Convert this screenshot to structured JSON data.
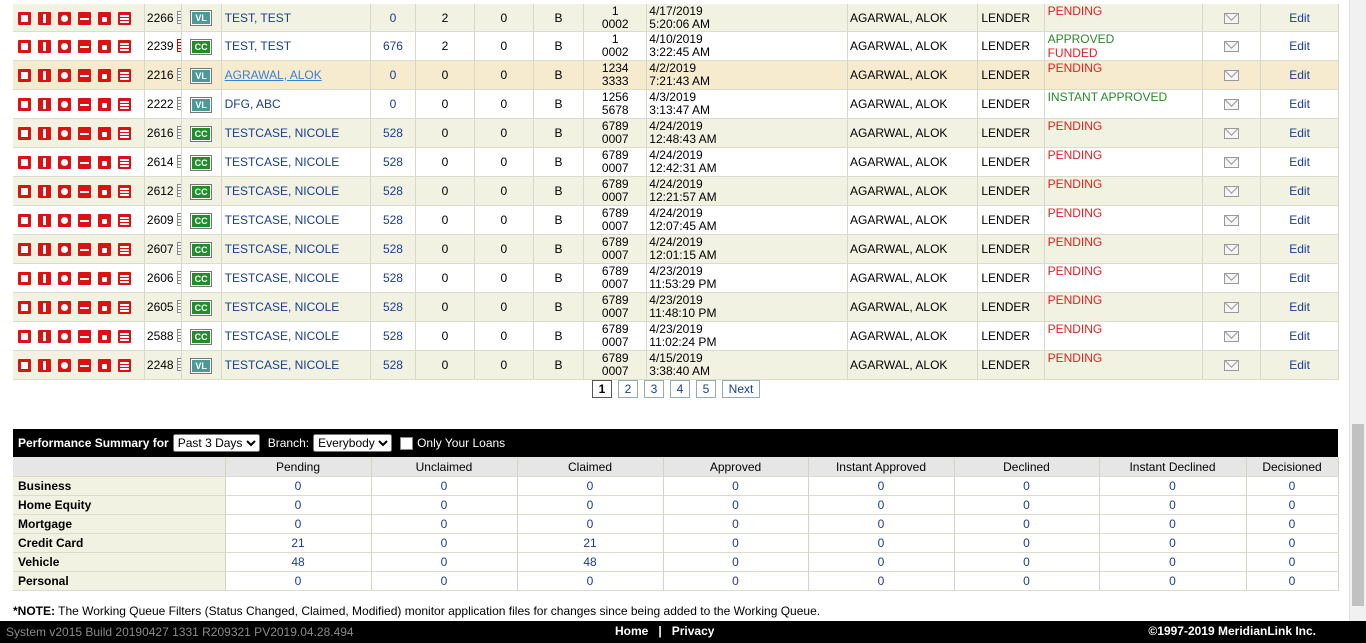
{
  "rows": [
    {
      "id": "2266",
      "note": "gray",
      "type": "VL",
      "name": "TEST, TEST",
      "score": "0",
      "c1": "2",
      "c2": "0",
      "tier": "B",
      "loan1": "1",
      "loan2": "0002",
      "date1": "4/17/2019",
      "date2": "5:20:06 AM",
      "officer": "AGARWAL, ALOK",
      "role": "LENDER",
      "status1": "PENDING",
      "status2": "",
      "edit": "Edit",
      "style": "even"
    },
    {
      "id": "2239",
      "note": "red",
      "type": "CC",
      "name": "TEST, TEST",
      "score": "676",
      "c1": "2",
      "c2": "0",
      "tier": "B",
      "loan1": "1",
      "loan2": "0002",
      "date1": "4/10/2019",
      "date2": "3:22:45 AM",
      "officer": "AGARWAL, ALOK",
      "role": "LENDER",
      "status1": "APPROVED",
      "status2": "FUNDED",
      "edit": "Edit",
      "style": "odd"
    },
    {
      "id": "2216",
      "note": "gray",
      "type": "VL",
      "name": "AGRAWAL, ALOK",
      "score": "0",
      "c1": "0",
      "c2": "0",
      "tier": "B",
      "loan1": "1234",
      "loan2": "3333",
      "date1": "4/2/2019",
      "date2": "7:21:43 AM",
      "officer": "AGARWAL, ALOK",
      "role": "LENDER",
      "status1": "PENDING",
      "status2": "",
      "edit": "Edit",
      "style": "hl"
    },
    {
      "id": "2222",
      "note": "gray",
      "type": "VL",
      "name": "DFG, ABC",
      "score": "0",
      "c1": "0",
      "c2": "0",
      "tier": "B",
      "loan1": "1256",
      "loan2": "5678",
      "date1": "4/3/2019",
      "date2": "3:13:47 AM",
      "officer": "AGARWAL, ALOK",
      "role": "LENDER",
      "status1": "INSTANT APPROVED",
      "status2": "",
      "edit": "Edit",
      "style": "odd"
    },
    {
      "id": "2616",
      "note": "gray",
      "type": "CC",
      "name": "TESTCASE, NICOLE",
      "score": "528",
      "c1": "0",
      "c2": "0",
      "tier": "B",
      "loan1": "6789",
      "loan2": "0007",
      "date1": "4/24/2019",
      "date2": "12:48:43 AM",
      "officer": "AGARWAL, ALOK",
      "role": "LENDER",
      "status1": "PENDING",
      "status2": "",
      "edit": "Edit",
      "style": "even"
    },
    {
      "id": "2614",
      "note": "gray",
      "type": "CC",
      "name": "TESTCASE, NICOLE",
      "score": "528",
      "c1": "0",
      "c2": "0",
      "tier": "B",
      "loan1": "6789",
      "loan2": "0007",
      "date1": "4/24/2019",
      "date2": "12:42:31 AM",
      "officer": "AGARWAL, ALOK",
      "role": "LENDER",
      "status1": "PENDING",
      "status2": "",
      "edit": "Edit",
      "style": "odd"
    },
    {
      "id": "2612",
      "note": "gray",
      "type": "CC",
      "name": "TESTCASE, NICOLE",
      "score": "528",
      "c1": "0",
      "c2": "0",
      "tier": "B",
      "loan1": "6789",
      "loan2": "0007",
      "date1": "4/24/2019",
      "date2": "12:21:57 AM",
      "officer": "AGARWAL, ALOK",
      "role": "LENDER",
      "status1": "PENDING",
      "status2": "",
      "edit": "Edit",
      "style": "even"
    },
    {
      "id": "2609",
      "note": "gray",
      "type": "CC",
      "name": "TESTCASE, NICOLE",
      "score": "528",
      "c1": "0",
      "c2": "0",
      "tier": "B",
      "loan1": "6789",
      "loan2": "0007",
      "date1": "4/24/2019",
      "date2": "12:07:45 AM",
      "officer": "AGARWAL, ALOK",
      "role": "LENDER",
      "status1": "PENDING",
      "status2": "",
      "edit": "Edit",
      "style": "odd"
    },
    {
      "id": "2607",
      "note": "gray",
      "type": "CC",
      "name": "TESTCASE, NICOLE",
      "score": "528",
      "c1": "0",
      "c2": "0",
      "tier": "B",
      "loan1": "6789",
      "loan2": "0007",
      "date1": "4/24/2019",
      "date2": "12:01:15 AM",
      "officer": "AGARWAL, ALOK",
      "role": "LENDER",
      "status1": "PENDING",
      "status2": "",
      "edit": "Edit",
      "style": "even"
    },
    {
      "id": "2606",
      "note": "gray",
      "type": "CC",
      "name": "TESTCASE, NICOLE",
      "score": "528",
      "c1": "0",
      "c2": "0",
      "tier": "B",
      "loan1": "6789",
      "loan2": "0007",
      "date1": "4/23/2019",
      "date2": "11:53:29 PM",
      "officer": "AGARWAL, ALOK",
      "role": "LENDER",
      "status1": "PENDING",
      "status2": "",
      "edit": "Edit",
      "style": "odd"
    },
    {
      "id": "2605",
      "note": "gray",
      "type": "CC",
      "name": "TESTCASE, NICOLE",
      "score": "528",
      "c1": "0",
      "c2": "0",
      "tier": "B",
      "loan1": "6789",
      "loan2": "0007",
      "date1": "4/23/2019",
      "date2": "11:48:10 PM",
      "officer": "AGARWAL, ALOK",
      "role": "LENDER",
      "status1": "PENDING",
      "status2": "",
      "edit": "Edit",
      "style": "even"
    },
    {
      "id": "2588",
      "note": "gray",
      "type": "CC",
      "name": "TESTCASE, NICOLE",
      "score": "528",
      "c1": "0",
      "c2": "0",
      "tier": "B",
      "loan1": "6789",
      "loan2": "0007",
      "date1": "4/23/2019",
      "date2": "11:02:24 PM",
      "officer": "AGARWAL, ALOK",
      "role": "LENDER",
      "status1": "PENDING",
      "status2": "",
      "edit": "Edit",
      "style": "odd"
    },
    {
      "id": "2248",
      "note": "gray",
      "type": "VL",
      "name": "TESTCASE, NICOLE",
      "score": "528",
      "c1": "0",
      "c2": "0",
      "tier": "B",
      "loan1": "6789",
      "loan2": "0007",
      "date1": "4/15/2019",
      "date2": "3:38:40 AM",
      "officer": "AGARWAL, ALOK",
      "role": "LENDER",
      "status1": "PENDING",
      "status2": "",
      "edit": "Edit",
      "style": "even"
    }
  ],
  "pager": {
    "pages": [
      "1",
      "2",
      "3",
      "4",
      "5"
    ],
    "current": "1",
    "next": "Next"
  },
  "perf": {
    "title": "Performance Summary for",
    "period": "Past 3 Days",
    "branch_label": "Branch:",
    "branch": "Everybody",
    "only_label": "Only Your Loans",
    "columns": [
      "Pending",
      "Unclaimed",
      "Claimed",
      "Approved",
      "Instant Approved",
      "Declined",
      "Instant Declined",
      "Decisioned"
    ],
    "rows": [
      {
        "label": "Business",
        "values": [
          "0",
          "0",
          "0",
          "0",
          "0",
          "0",
          "0",
          "0"
        ]
      },
      {
        "label": "Home Equity",
        "values": [
          "0",
          "0",
          "0",
          "0",
          "0",
          "0",
          "0",
          "0"
        ]
      },
      {
        "label": "Mortgage",
        "values": [
          "0",
          "0",
          "0",
          "0",
          "0",
          "0",
          "0",
          "0"
        ]
      },
      {
        "label": "Credit Card",
        "values": [
          "21",
          "0",
          "21",
          "0",
          "0",
          "0",
          "0",
          "0"
        ]
      },
      {
        "label": "Vehicle",
        "values": [
          "48",
          "0",
          "48",
          "0",
          "0",
          "0",
          "0",
          "0"
        ]
      },
      {
        "label": "Personal",
        "values": [
          "0",
          "0",
          "0",
          "0",
          "0",
          "0",
          "0",
          "0"
        ]
      }
    ]
  },
  "note": {
    "label": "*NOTE:",
    "text": " The Working Queue Filters (Status Changed, Claimed, Modified) monitor application files for changes since being added to the Working Queue."
  },
  "footer": {
    "version": "System v2015 Build 20190427 1331 R209321 PV2019.04.28.494",
    "home": "Home",
    "sep": "|",
    "privacy": "Privacy",
    "copyright": "©1997-2019 MeridianLink Inc."
  },
  "icons": [
    "upload-icon",
    "person-icon",
    "camera-icon",
    "image-icon",
    "lock-icon",
    "list-icon"
  ],
  "colors": {
    "pending": "#e02020",
    "approved": "#2a8a2a",
    "link": "#1a3d8f",
    "row_alt": "#f1f2e1",
    "row_highlight": "#f7ebcf"
  }
}
